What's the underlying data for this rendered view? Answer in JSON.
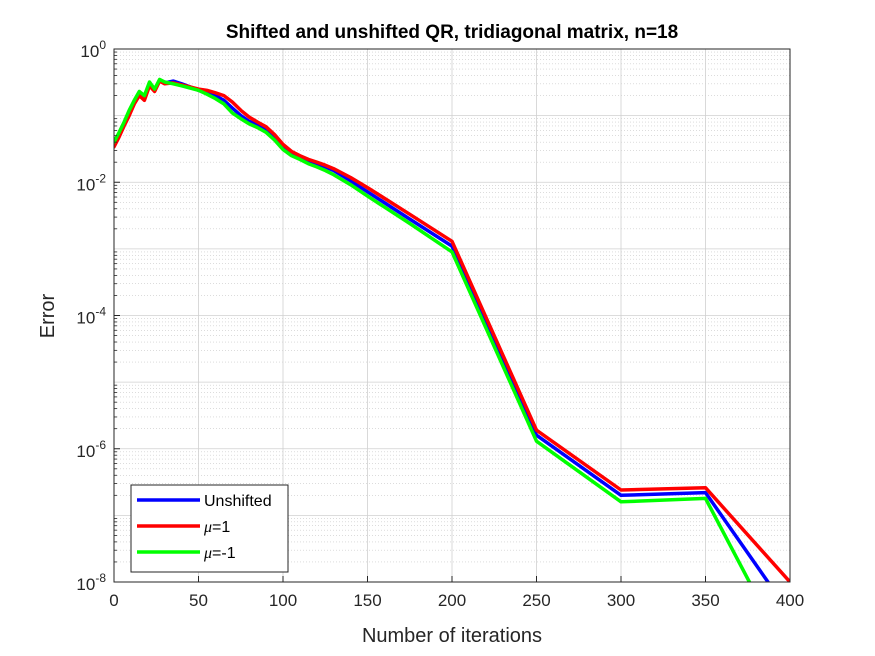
{
  "chart_data": {
    "type": "line",
    "title": "Shifted and unshifted QR, tridiagonal matrix, n=18",
    "xlabel": "Number of iterations",
    "ylabel": "Error",
    "xlim": [
      0,
      400
    ],
    "ylim": [
      1e-08,
      1
    ],
    "yscale": "log",
    "grid": true,
    "minor_grid": true,
    "legend_position": "bottom-left",
    "x_ticks": [
      0,
      50,
      100,
      150,
      200,
      250,
      300,
      350,
      400
    ],
    "y_ticks": [
      {
        "value": 1e-08,
        "base": "10",
        "exp": "-8"
      },
      {
        "value": 1e-06,
        "base": "10",
        "exp": "-6"
      },
      {
        "value": 0.0001,
        "base": "10",
        "exp": "-4"
      },
      {
        "value": 0.01,
        "base": "10",
        "exp": "-2"
      },
      {
        "value": 1,
        "base": "10",
        "exp": "0"
      }
    ],
    "series": [
      {
        "name": "Unshifted",
        "legend_symbol": "",
        "legend_suffix": "Unshifted",
        "color": "#0000ff",
        "x": [
          0,
          3,
          6,
          9,
          12,
          15,
          18,
          21,
          24,
          27,
          30,
          35,
          40,
          45,
          50,
          55,
          60,
          65,
          70,
          75,
          80,
          85,
          90,
          95,
          100,
          105,
          110,
          115,
          120,
          125,
          130,
          140,
          150,
          175,
          200,
          250,
          300,
          350,
          387
        ],
        "y": [
          0.037,
          0.052,
          0.075,
          0.11,
          0.16,
          0.21,
          0.18,
          0.3,
          0.24,
          0.34,
          0.31,
          0.33,
          0.3,
          0.27,
          0.24,
          0.22,
          0.2,
          0.17,
          0.13,
          0.1,
          0.082,
          0.072,
          0.062,
          0.048,
          0.034,
          0.027,
          0.024,
          0.021,
          0.019,
          0.017,
          0.015,
          0.0105,
          0.0072,
          0.0028,
          0.0011,
          1.6e-06,
          2e-07,
          2.2e-07,
          1e-08
        ]
      },
      {
        "name": "μ=1",
        "legend_symbol": "μ",
        "legend_suffix": "=1",
        "color": "#ff0000",
        "x": [
          0,
          3,
          6,
          9,
          12,
          15,
          18,
          21,
          24,
          27,
          30,
          35,
          40,
          45,
          50,
          55,
          60,
          65,
          70,
          75,
          80,
          85,
          90,
          95,
          100,
          105,
          110,
          115,
          120,
          125,
          130,
          140,
          150,
          175,
          200,
          250,
          300,
          350,
          400
        ],
        "y": [
          0.034,
          0.048,
          0.07,
          0.1,
          0.15,
          0.2,
          0.17,
          0.28,
          0.23,
          0.33,
          0.3,
          0.31,
          0.29,
          0.27,
          0.25,
          0.24,
          0.22,
          0.2,
          0.16,
          0.12,
          0.095,
          0.08,
          0.068,
          0.052,
          0.037,
          0.029,
          0.025,
          0.022,
          0.02,
          0.018,
          0.016,
          0.0118,
          0.0083,
          0.0033,
          0.0013,
          1.9e-06,
          2.4e-07,
          2.6e-07,
          1e-08
        ]
      },
      {
        "name": "μ=-1",
        "legend_symbol": "μ",
        "legend_suffix": "=-1",
        "color": "#00ff00",
        "x": [
          0,
          3,
          6,
          9,
          12,
          15,
          18,
          21,
          24,
          27,
          30,
          35,
          40,
          45,
          50,
          55,
          60,
          65,
          70,
          75,
          80,
          85,
          90,
          95,
          100,
          105,
          110,
          115,
          120,
          125,
          130,
          140,
          150,
          175,
          200,
          250,
          300,
          350,
          376
        ],
        "y": [
          0.04,
          0.056,
          0.08,
          0.12,
          0.17,
          0.23,
          0.2,
          0.32,
          0.25,
          0.35,
          0.32,
          0.3,
          0.28,
          0.26,
          0.24,
          0.21,
          0.18,
          0.15,
          0.11,
          0.09,
          0.075,
          0.066,
          0.056,
          0.043,
          0.031,
          0.025,
          0.022,
          0.019,
          0.017,
          0.015,
          0.013,
          0.0092,
          0.0062,
          0.0024,
          0.0009,
          1.3e-06,
          1.6e-07,
          1.8e-07,
          1e-08
        ]
      }
    ]
  }
}
